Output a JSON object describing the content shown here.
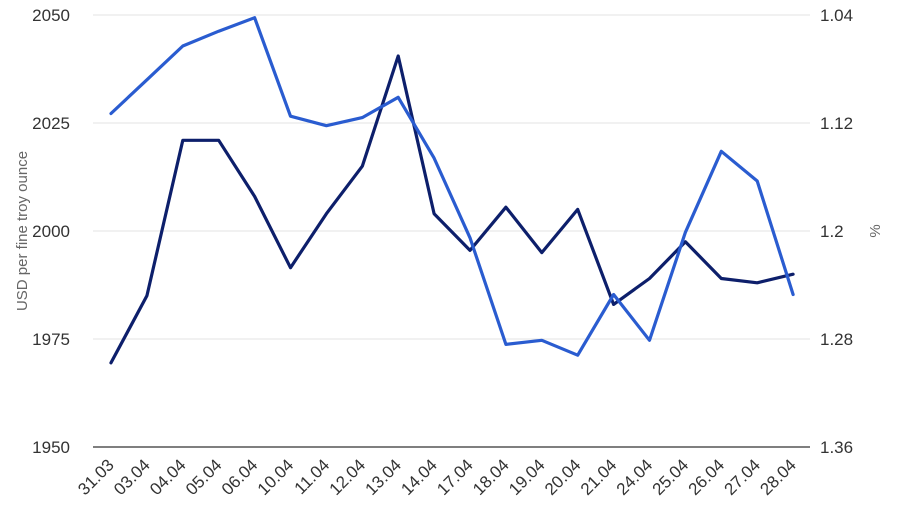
{
  "chart_data": {
    "type": "line",
    "categories": [
      "31.03",
      "03.04",
      "04.04",
      "05.04",
      "06.04",
      "10.04",
      "11.04",
      "12.04",
      "13.04",
      "14.04",
      "17.04",
      "18.04",
      "19.04",
      "20.04",
      "21.04",
      "24.04",
      "25.04",
      "26.04",
      "27.04",
      "28.04"
    ],
    "y_left": {
      "label": "USD per fine troy ounce",
      "range": [
        1950,
        2050
      ],
      "ticks": [
        "1950",
        "1975",
        "2000",
        "2025",
        "2050"
      ]
    },
    "y_right": {
      "label": "%",
      "range": [
        1.36,
        1.04
      ],
      "ticks": [
        "1.36",
        "1.28",
        "1.2",
        "1.12",
        "1.04"
      ]
    },
    "series": [
      {
        "axis": "left",
        "color": "#0d1f6b",
        "values": [
          1969.5,
          1985,
          2021,
          2021,
          2008,
          1991.5,
          2004,
          2015,
          2040.5,
          2004,
          1995.5,
          2005.5,
          1995,
          2005,
          1983,
          1989,
          1997.5,
          1989,
          1988,
          1990
        ]
      },
      {
        "axis": "right",
        "color": "#2a5cd0",
        "values": [
          1.113,
          1.088,
          1.063,
          1.052,
          1.042,
          1.115,
          1.122,
          1.116,
          1.101,
          1.146,
          1.205,
          1.284,
          1.281,
          1.292,
          1.247,
          1.281,
          1.201,
          1.141,
          1.163,
          1.247
        ]
      }
    ],
    "grid": true
  }
}
